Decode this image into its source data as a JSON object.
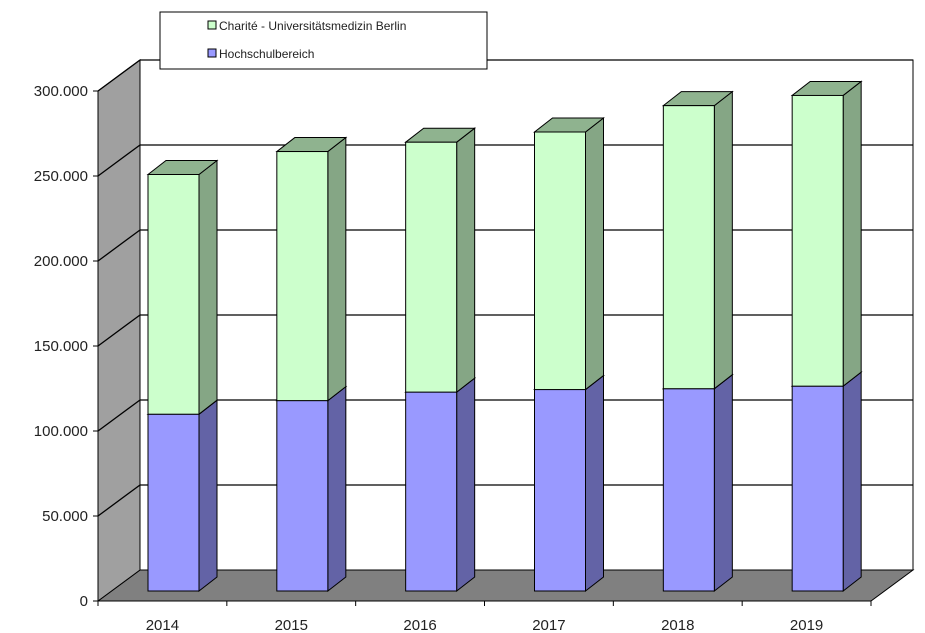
{
  "chart_data": {
    "type": "bar",
    "stacked": true,
    "three_d": true,
    "categories": [
      "2014",
      "2015",
      "2016",
      "2017",
      "2018",
      "2019"
    ],
    "series": [
      {
        "name": "Hochschulbereich",
        "color": "#9999ff",
        "values": [
          104000,
          112000,
          117000,
          118500,
          119000,
          120500
        ]
      },
      {
        "name": "Charité - Universitätsmedizin Berlin",
        "color": "#ccffcc",
        "values": [
          141000,
          146500,
          147000,
          151500,
          166500,
          171000
        ]
      }
    ],
    "y_ticks": [
      "0",
      "50.000",
      "100.000",
      "150.000",
      "200.000",
      "250.000",
      "300.000"
    ],
    "ylim": [
      0,
      300000
    ],
    "title": "",
    "xlabel": "",
    "ylabel": "",
    "grid": true,
    "legend_position": "top-left"
  }
}
